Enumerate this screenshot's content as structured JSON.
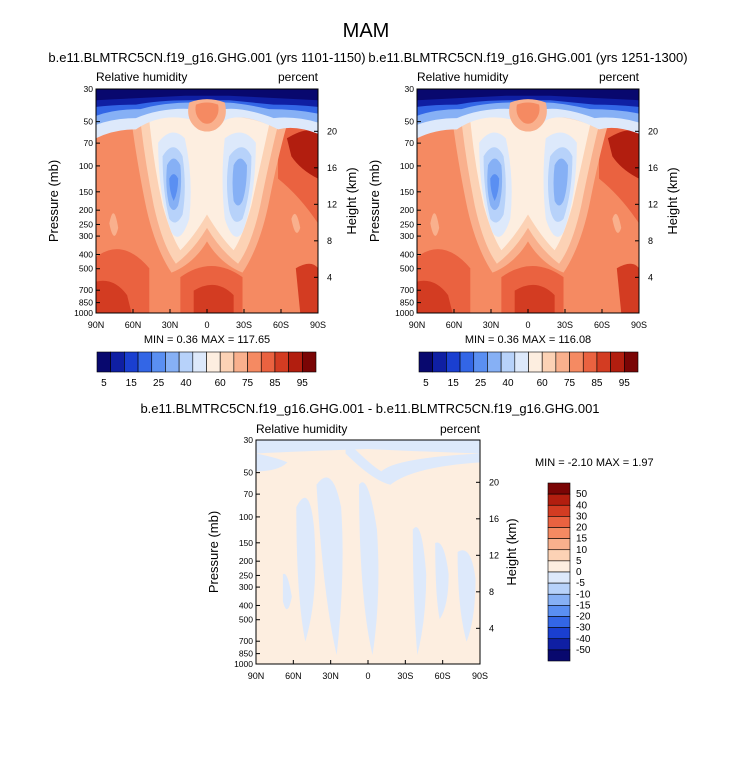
{
  "figure": {
    "title": "MAM"
  },
  "panels": [
    {
      "id": "left",
      "case": "b.e11.BLMTRC5CN.f19_g16.GHG.001 (yrs 1101-1150)",
      "left_string": "Relative humidity",
      "right_string": "percent",
      "stats": "MIN =  0.36  MAX = 117.65"
    },
    {
      "id": "right",
      "case": "b.e11.BLMTRC5CN.f19_g16.GHG.001 (yrs 1251-1300)",
      "left_string": "Relative humidity",
      "right_string": "percent",
      "stats": "MIN =  0.36  MAX = 116.08"
    },
    {
      "id": "diff",
      "case": "b.e11.BLMTRC5CN.f19_g16.GHG.001 - b.e11.BLMTRC5CN.f19_g16.GHG.001",
      "left_string": "Relative humidity",
      "right_string": "percent",
      "stats": "MIN = -2.10  MAX =  1.97"
    }
  ],
  "chart_data": [
    {
      "type": "heatmap",
      "subtype": "zonal-mean pressure-latitude contour",
      "title": "b.e11.BLMTRC5CN.f19_g16.GHG.001 (yrs 1101-1150)",
      "left_string": "Relative humidity",
      "right_string": "percent",
      "xlabel": "",
      "ylabel": "Pressure (mb)",
      "y2label": "Height (km)",
      "x_ticks": [
        "90N",
        "60N",
        "30N",
        "0",
        "30S",
        "60S",
        "90S"
      ],
      "y_ticks": [
        "30",
        "50",
        "70",
        "100",
        "150",
        "200",
        "250",
        "300",
        "400",
        "500",
        "700",
        "850",
        "1000"
      ],
      "y2_ticks": [
        "20",
        "16",
        "12",
        "8",
        "4"
      ],
      "y_scale": "log",
      "min": 0.36,
      "max": 117.65
    },
    {
      "type": "heatmap",
      "subtype": "zonal-mean pressure-latitude contour",
      "title": "b.e11.BLMTRC5CN.f19_g16.GHG.001 (yrs 1251-1300)",
      "left_string": "Relative humidity",
      "right_string": "percent",
      "xlabel": "",
      "ylabel": "Pressure (mb)",
      "y2label": "Height (km)",
      "x_ticks": [
        "90N",
        "60N",
        "30N",
        "0",
        "30S",
        "60S",
        "90S"
      ],
      "y_ticks": [
        "30",
        "50",
        "70",
        "100",
        "150",
        "200",
        "250",
        "300",
        "400",
        "500",
        "700",
        "850",
        "1000"
      ],
      "y2_ticks": [
        "20",
        "16",
        "12",
        "8",
        "4"
      ],
      "y_scale": "log",
      "min": 0.36,
      "max": 116.08
    },
    {
      "type": "heatmap",
      "subtype": "zonal-mean pressure-latitude difference contour",
      "title": "b.e11.BLMTRC5CN.f19_g16.GHG.001 - b.e11.BLMTRC5CN.f19_g16.GHG.001",
      "left_string": "Relative humidity",
      "right_string": "percent",
      "xlabel": "",
      "ylabel": "Pressure (mb)",
      "y2label": "Height (km)",
      "x_ticks": [
        "90N",
        "60N",
        "30N",
        "0",
        "30S",
        "60S",
        "90S"
      ],
      "y_ticks": [
        "30",
        "50",
        "70",
        "100",
        "150",
        "200",
        "250",
        "300",
        "400",
        "500",
        "700",
        "850",
        "1000"
      ],
      "y2_ticks": [
        "20",
        "16",
        "12",
        "8",
        "4"
      ],
      "y_scale": "log",
      "min": -2.1,
      "max": 1.97
    }
  ],
  "colorbar_main": {
    "orientation": "horizontal",
    "labels": [
      "5",
      "15",
      "25",
      "40",
      "60",
      "75",
      "85",
      "95"
    ],
    "colors": [
      "#08086e",
      "#0f1fa3",
      "#1a3fd0",
      "#3366e6",
      "#5a8ff2",
      "#86b0f5",
      "#b7d2fa",
      "#dde9fb",
      "#fdeee0",
      "#fcd2b5",
      "#f9b08d",
      "#f58a62",
      "#ea6240",
      "#d33c22",
      "#b21e0f",
      "#7a0505"
    ]
  },
  "colorbar_diff": {
    "orientation": "vertical",
    "labels": [
      "50",
      "40",
      "30",
      "20",
      "15",
      "10",
      "5",
      "0",
      "-5",
      "-10",
      "-15",
      "-20",
      "-30",
      "-40",
      "-50"
    ],
    "colors": [
      "#7a0505",
      "#b21e0f",
      "#d33c22",
      "#ea6240",
      "#f58a62",
      "#f9b08d",
      "#fcd2b5",
      "#fdeee0",
      "#dde9fb",
      "#b7d2fa",
      "#86b0f5",
      "#5a8ff2",
      "#3366e6",
      "#1a3fd0",
      "#0f1fa3",
      "#08086e"
    ]
  }
}
